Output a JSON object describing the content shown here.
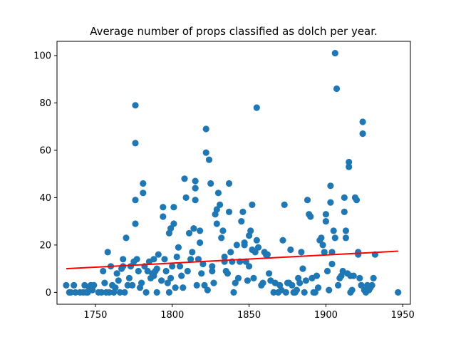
{
  "chart_data": {
    "type": "scatter",
    "title": "Average number of props classified as dolch per year.",
    "xlabel": "",
    "ylabel": "",
    "xlim": [
      1725,
      1955
    ],
    "ylim": [
      -5,
      106
    ],
    "xticks": [
      1750,
      1800,
      1850,
      1900,
      1950
    ],
    "yticks": [
      0,
      20,
      40,
      60,
      80,
      100
    ],
    "grid": false,
    "legend": "none",
    "point_color": "#1f77b4",
    "trend_color": "#ff0000",
    "trend_line": {
      "x": [
        1731,
        1947
      ],
      "y": [
        10,
        17.4
      ]
    },
    "points": [
      [
        1731,
        3
      ],
      [
        1733,
        0
      ],
      [
        1734,
        0
      ],
      [
        1736,
        3
      ],
      [
        1737,
        0
      ],
      [
        1740,
        0
      ],
      [
        1742,
        0
      ],
      [
        1743,
        3
      ],
      [
        1744,
        0
      ],
      [
        1745,
        0
      ],
      [
        1746,
        2
      ],
      [
        1747,
        3
      ],
      [
        1748,
        1
      ],
      [
        1749,
        3
      ],
      [
        1752,
        0
      ],
      [
        1754,
        0
      ],
      [
        1755,
        9
      ],
      [
        1756,
        4
      ],
      [
        1757,
        0
      ],
      [
        1758,
        17
      ],
      [
        1759,
        0
      ],
      [
        1760,
        11
      ],
      [
        1761,
        3
      ],
      [
        1762,
        0
      ],
      [
        1763,
        2
      ],
      [
        1764,
        8
      ],
      [
        1765,
        5
      ],
      [
        1766,
        0
      ],
      [
        1767,
        10
      ],
      [
        1768,
        11
      ],
      [
        1768,
        14
      ],
      [
        1769,
        0
      ],
      [
        1770,
        23
      ],
      [
        1771,
        3
      ],
      [
        1772,
        6
      ],
      [
        1773,
        11
      ],
      [
        1774,
        3
      ],
      [
        1775,
        13
      ],
      [
        1776,
        29
      ],
      [
        1776,
        39
      ],
      [
        1776,
        63
      ],
      [
        1776,
        79
      ],
      [
        1777,
        14
      ],
      [
        1778,
        9
      ],
      [
        1779,
        2
      ],
      [
        1780,
        4
      ],
      [
        1781,
        42
      ],
      [
        1781,
        46
      ],
      [
        1782,
        11
      ],
      [
        1783,
        0
      ],
      [
        1784,
        9
      ],
      [
        1785,
        13
      ],
      [
        1786,
        6
      ],
      [
        1787,
        8
      ],
      [
        1788,
        7
      ],
      [
        1788,
        14
      ],
      [
        1789,
        9
      ],
      [
        1790,
        0
      ],
      [
        1790,
        10
      ],
      [
        1791,
        16
      ],
      [
        1793,
        5
      ],
      [
        1794,
        32
      ],
      [
        1794,
        36
      ],
      [
        1795,
        14
      ],
      [
        1796,
        9
      ],
      [
        1797,
        4
      ],
      [
        1798,
        0
      ],
      [
        1798,
        25
      ],
      [
        1799,
        27
      ],
      [
        1799,
        6
      ],
      [
        1800,
        11
      ],
      [
        1801,
        29
      ],
      [
        1801,
        36
      ],
      [
        1802,
        2
      ],
      [
        1803,
        15
      ],
      [
        1804,
        19
      ],
      [
        1805,
        11
      ],
      [
        1806,
        7
      ],
      [
        1807,
        2
      ],
      [
        1808,
        48
      ],
      [
        1809,
        40
      ],
      [
        1810,
        9
      ],
      [
        1811,
        25
      ],
      [
        1812,
        14
      ],
      [
        1813,
        17
      ],
      [
        1814,
        27
      ],
      [
        1815,
        39
      ],
      [
        1815,
        44
      ],
      [
        1815,
        47
      ],
      [
        1816,
        3
      ],
      [
        1817,
        14
      ],
      [
        1818,
        26
      ],
      [
        1818,
        21
      ],
      [
        1819,
        8
      ],
      [
        1820,
        12
      ],
      [
        1821,
        3
      ],
      [
        1822,
        69
      ],
      [
        1822,
        59
      ],
      [
        1823,
        1
      ],
      [
        1824,
        56
      ],
      [
        1825,
        46
      ],
      [
        1826,
        9
      ],
      [
        1826,
        11
      ],
      [
        1827,
        4
      ],
      [
        1828,
        33
      ],
      [
        1829,
        35
      ],
      [
        1829,
        29
      ],
      [
        1830,
        42
      ],
      [
        1831,
        37
      ],
      [
        1832,
        23
      ],
      [
        1833,
        26
      ],
      [
        1834,
        15
      ],
      [
        1834,
        13
      ],
      [
        1835,
        9
      ],
      [
        1836,
        8
      ],
      [
        1837,
        34
      ],
      [
        1837,
        46
      ],
      [
        1838,
        17
      ],
      [
        1839,
        13
      ],
      [
        1840,
        0
      ],
      [
        1841,
        4
      ],
      [
        1842,
        20
      ],
      [
        1843,
        6
      ],
      [
        1844,
        13
      ],
      [
        1845,
        30
      ],
      [
        1846,
        34
      ],
      [
        1847,
        21
      ],
      [
        1847,
        20
      ],
      [
        1848,
        13
      ],
      [
        1849,
        5
      ],
      [
        1850,
        11
      ],
      [
        1850,
        24
      ],
      [
        1851,
        26
      ],
      [
        1852,
        18
      ],
      [
        1852,
        37
      ],
      [
        1853,
        6
      ],
      [
        1854,
        17
      ],
      [
        1855,
        78
      ],
      [
        1855,
        22
      ],
      [
        1856,
        19
      ],
      [
        1858,
        3
      ],
      [
        1859,
        4
      ],
      [
        1860,
        17
      ],
      [
        1861,
        16
      ],
      [
        1862,
        16
      ],
      [
        1863,
        8
      ],
      [
        1864,
        5
      ],
      [
        1866,
        0
      ],
      [
        1867,
        4
      ],
      [
        1869,
        0
      ],
      [
        1870,
        3
      ],
      [
        1871,
        1
      ],
      [
        1872,
        22
      ],
      [
        1873,
        37
      ],
      [
        1874,
        0
      ],
      [
        1875,
        4
      ],
      [
        1876,
        4
      ],
      [
        1877,
        18
      ],
      [
        1878,
        3
      ],
      [
        1879,
        0
      ],
      [
        1880,
        0
      ],
      [
        1881,
        1
      ],
      [
        1882,
        6
      ],
      [
        1883,
        4
      ],
      [
        1884,
        17
      ],
      [
        1885,
        10
      ],
      [
        1886,
        0
      ],
      [
        1887,
        5
      ],
      [
        1888,
        39
      ],
      [
        1889,
        33
      ],
      [
        1890,
        32
      ],
      [
        1891,
        6
      ],
      [
        1892,
        0
      ],
      [
        1893,
        0
      ],
      [
        1894,
        7
      ],
      [
        1895,
        2
      ],
      [
        1896,
        22
      ],
      [
        1897,
        23
      ],
      [
        1898,
        20
      ],
      [
        1899,
        17
      ],
      [
        1900,
        33
      ],
      [
        1900,
        30
      ],
      [
        1901,
        9
      ],
      [
        1902,
        1
      ],
      [
        1903,
        45
      ],
      [
        1903,
        38
      ],
      [
        1904,
        12
      ],
      [
        1904,
        17
      ],
      [
        1905,
        26
      ],
      [
        1906,
        23
      ],
      [
        1906,
        101
      ],
      [
        1907,
        86
      ],
      [
        1908,
        3
      ],
      [
        1909,
        6
      ],
      [
        1910,
        7
      ],
      [
        1911,
        9
      ],
      [
        1912,
        40
      ],
      [
        1912,
        34
      ],
      [
        1913,
        26
      ],
      [
        1913,
        23
      ],
      [
        1914,
        8
      ],
      [
        1915,
        55
      ],
      [
        1915,
        53
      ],
      [
        1916,
        0
      ],
      [
        1916,
        7
      ],
      [
        1917,
        1
      ],
      [
        1918,
        7
      ],
      [
        1919,
        40
      ],
      [
        1920,
        39
      ],
      [
        1921,
        16
      ],
      [
        1921,
        17
      ],
      [
        1922,
        6
      ],
      [
        1923,
        3
      ],
      [
        1924,
        72
      ],
      [
        1924,
        67
      ],
      [
        1925,
        1
      ],
      [
        1926,
        0
      ],
      [
        1927,
        3
      ],
      [
        1928,
        1
      ],
      [
        1929,
        2
      ],
      [
        1930,
        3
      ],
      [
        1931,
        6
      ],
      [
        1932,
        16
      ],
      [
        1947,
        0
      ]
    ]
  }
}
